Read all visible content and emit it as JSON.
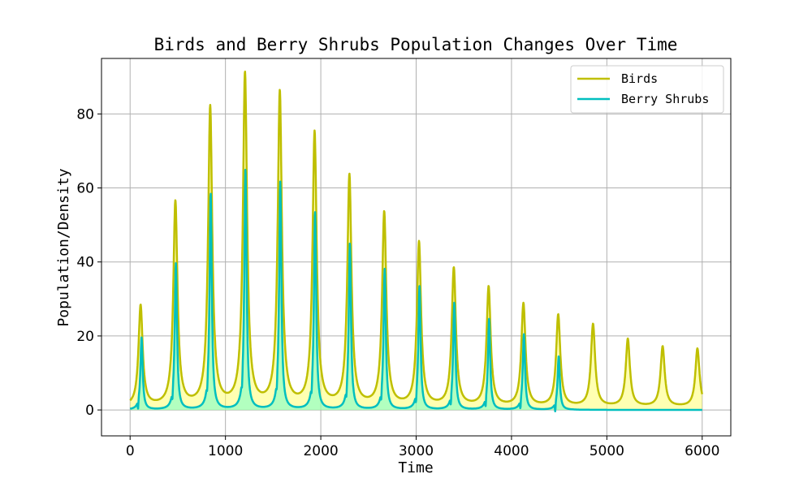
{
  "chart_data": {
    "type": "line",
    "title": "Birds and Berry Shrubs Population Changes Over Time",
    "xlabel": "Time",
    "ylabel": "Population/Density",
    "xlim": [
      -300,
      6300
    ],
    "ylim": [
      -7,
      95
    ],
    "xticks": [
      0,
      1000,
      2000,
      3000,
      4000,
      5000,
      6000
    ],
    "xtick_labels": [
      "0",
      "1000",
      "2000",
      "3000",
      "4000",
      "5000",
      "6000"
    ],
    "yticks": [
      0,
      20,
      40,
      60,
      80
    ],
    "ytick_labels": [
      "0",
      "20",
      "40",
      "60",
      "80"
    ],
    "grid": true,
    "legend_position": "top-right",
    "series": [
      {
        "name": "Birds",
        "color": "#bfbf00",
        "fill_color": "#ffff66",
        "baseline": 0.8,
        "peak_width": 26,
        "peaks": [
          {
            "x": 110,
            "y": 28
          },
          {
            "x": 475,
            "y": 56
          },
          {
            "x": 840,
            "y": 81.5
          },
          {
            "x": 1205,
            "y": 90.5
          },
          {
            "x": 1570,
            "y": 85.5
          },
          {
            "x": 1935,
            "y": 74.5
          },
          {
            "x": 2300,
            "y": 63
          },
          {
            "x": 2665,
            "y": 53
          },
          {
            "x": 3030,
            "y": 45
          },
          {
            "x": 3395,
            "y": 38
          },
          {
            "x": 3760,
            "y": 33
          },
          {
            "x": 4125,
            "y": 28.5
          },
          {
            "x": 4490,
            "y": 25.5
          },
          {
            "x": 4855,
            "y": 23
          },
          {
            "x": 5220,
            "y": 19
          },
          {
            "x": 5585,
            "y": 17
          },
          {
            "x": 5950,
            "y": 16.5
          }
        ]
      },
      {
        "name": "Berry Shrubs",
        "color": "#00bfbf",
        "fill_color": "#66ffcc",
        "baseline": 0,
        "peak_width": 14,
        "dip": -2.3,
        "peaks": [
          {
            "x": 120,
            "y": 19.5
          },
          {
            "x": 480,
            "y": 39.5
          },
          {
            "x": 845,
            "y": 58.5
          },
          {
            "x": 1210,
            "y": 65
          },
          {
            "x": 1575,
            "y": 61.5
          },
          {
            "x": 1940,
            "y": 53.5
          },
          {
            "x": 2305,
            "y": 45
          },
          {
            "x": 2670,
            "y": 38
          },
          {
            "x": 3035,
            "y": 33.5
          },
          {
            "x": 3400,
            "y": 29
          },
          {
            "x": 3765,
            "y": 24.5
          },
          {
            "x": 4130,
            "y": 20.5
          },
          {
            "x": 4495,
            "y": 14.5
          }
        ]
      }
    ]
  }
}
